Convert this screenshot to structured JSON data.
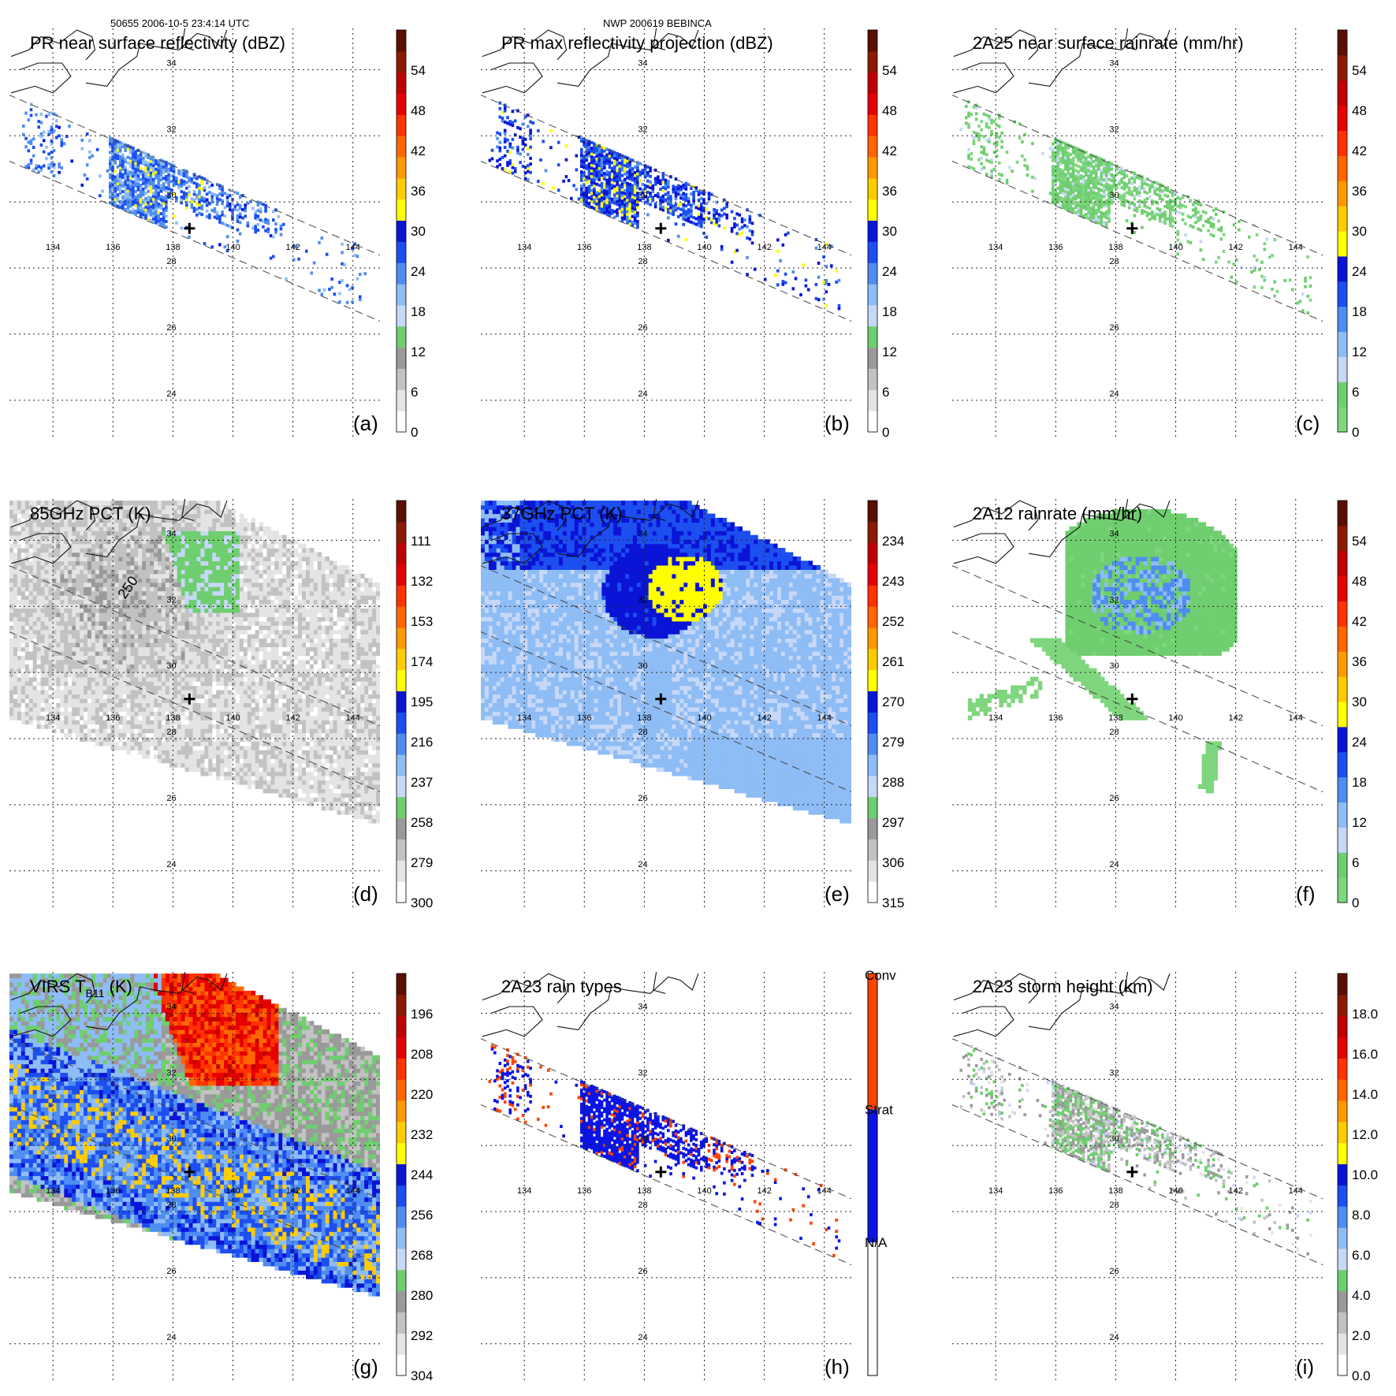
{
  "header": {
    "left": "50655 2006-10-5 23:4:14 UTC",
    "center": "NWP 200619 BEBINCA"
  },
  "chart_data": [
    {
      "type": "heatmap",
      "id": "a",
      "title": "PR near surface reflectivity (dBZ)",
      "panel_label": "(a)",
      "lon_ticks": [
        "134",
        "136",
        "138",
        "140",
        "142",
        "144"
      ],
      "lat_ticks": [
        "34",
        "32",
        "30",
        "28",
        "26",
        "24"
      ],
      "colorbar": {
        "min": 0,
        "max": 60,
        "ticks": [
          "0",
          "6",
          "12",
          "18",
          "24",
          "30",
          "36",
          "42",
          "48",
          "54"
        ],
        "palette": [
          "#ffffff",
          "#e4e4e4",
          "#c2c2c2",
          "#9a9a9a",
          "#6fce6f",
          "#c6d8f7",
          "#8ebcf5",
          "#4f8df0",
          "#1c4ef0",
          "#0a14d6",
          "#ffff00",
          "#ffcc00",
          "#ff9900",
          "#ff6600",
          "#ff3300",
          "#e60000",
          "#c00000",
          "#8c1a00",
          "#5a0f00"
        ]
      },
      "rain_overlay": "reflectivity"
    },
    {
      "type": "heatmap",
      "id": "b",
      "title": "PR max reflectivity projection (dBZ)",
      "panel_label": "(b)",
      "lon_ticks": [
        "134",
        "136",
        "138",
        "140",
        "142",
        "144"
      ],
      "lat_ticks": [
        "34",
        "32",
        "30",
        "28",
        "26",
        "24"
      ],
      "colorbar": {
        "min": 0,
        "max": 60,
        "ticks": [
          "0",
          "6",
          "12",
          "18",
          "24",
          "30",
          "36",
          "42",
          "48",
          "54"
        ],
        "palette": [
          "#ffffff",
          "#e4e4e4",
          "#c2c2c2",
          "#9a9a9a",
          "#6fce6f",
          "#c6d8f7",
          "#8ebcf5",
          "#4f8df0",
          "#1c4ef0",
          "#0a14d6",
          "#ffff00",
          "#ffcc00",
          "#ff9900",
          "#ff6600",
          "#ff3300",
          "#e60000",
          "#c00000",
          "#8c1a00",
          "#5a0f00"
        ]
      },
      "rain_overlay": "maxref"
    },
    {
      "type": "heatmap",
      "id": "c",
      "title": "2A25 near surface rainrate (mm/hr)",
      "panel_label": "(c)",
      "lon_ticks": [
        "134",
        "136",
        "138",
        "140",
        "142",
        "144"
      ],
      "lat_ticks": [
        "34",
        "32",
        "30",
        "28",
        "26",
        "24"
      ],
      "colorbar": {
        "min": 0,
        "max": 60,
        "ticks": [
          "0",
          "6",
          "12",
          "18",
          "24",
          "30",
          "36",
          "42",
          "48",
          "54"
        ],
        "palette": [
          "#7fd67f",
          "#6fce6f",
          "#c6d8f7",
          "#8ebcf5",
          "#4f8df0",
          "#1c4ef0",
          "#0a14d6",
          "#ffff00",
          "#ffcc00",
          "#ff9900",
          "#ff6600",
          "#ff3300",
          "#e60000",
          "#c00000",
          "#8c1a00",
          "#5a0f00"
        ]
      },
      "rain_overlay": "rainrate"
    },
    {
      "type": "heatmap",
      "id": "d",
      "title": "85GHz PCT (K)",
      "panel_label": "(d)",
      "contour_label": "250",
      "lon_ticks": [
        "134",
        "136",
        "138",
        "140",
        "142",
        "144"
      ],
      "lat_ticks": [
        "34",
        "32",
        "30",
        "28",
        "26",
        "24"
      ],
      "colorbar": {
        "min": 90,
        "max": 300,
        "reverse": true,
        "ticks": [
          "300",
          "279",
          "258",
          "237",
          "216",
          "195",
          "174",
          "153",
          "132",
          "111"
        ],
        "palette": [
          "#ffffff",
          "#e4e4e4",
          "#c2c2c2",
          "#9a9a9a",
          "#6fce6f",
          "#c6d8f7",
          "#8ebcf5",
          "#4f8df0",
          "#1c4ef0",
          "#0a14d6",
          "#ffff00",
          "#ffcc00",
          "#ff9900",
          "#ff6600",
          "#ff3300",
          "#e60000",
          "#c00000",
          "#8c1a00",
          "#5a0f00"
        ]
      },
      "swath": "wide-gray"
    },
    {
      "type": "heatmap",
      "id": "e",
      "title": "37GHz PCT (K)",
      "panel_label": "(e)",
      "lon_ticks": [
        "134",
        "136",
        "138",
        "140",
        "142",
        "144"
      ],
      "lat_ticks": [
        "34",
        "32",
        "30",
        "28",
        "26",
        "24"
      ],
      "colorbar": {
        "min": 225,
        "max": 315,
        "reverse": true,
        "ticks": [
          "315",
          "306",
          "297",
          "288",
          "279",
          "270",
          "261",
          "252",
          "243",
          "234"
        ],
        "palette": [
          "#ffffff",
          "#e4e4e4",
          "#c2c2c2",
          "#9a9a9a",
          "#6fce6f",
          "#c6d8f7",
          "#8ebcf5",
          "#4f8df0",
          "#1c4ef0",
          "#0a14d6",
          "#ffff00",
          "#ffcc00",
          "#ff9900",
          "#ff6600",
          "#ff3300",
          "#e60000",
          "#c00000",
          "#8c1a00",
          "#5a0f00"
        ]
      },
      "swath": "wide-blue"
    },
    {
      "type": "heatmap",
      "id": "f",
      "title": "2A12 rainrate (mm/hr)",
      "panel_label": "(f)",
      "lon_ticks": [
        "134",
        "136",
        "138",
        "140",
        "142",
        "144"
      ],
      "lat_ticks": [
        "34",
        "32",
        "30",
        "28",
        "26",
        "24"
      ],
      "colorbar": {
        "min": 0,
        "max": 60,
        "ticks": [
          "0",
          "6",
          "12",
          "18",
          "24",
          "30",
          "36",
          "42",
          "48",
          "54"
        ],
        "palette": [
          "#7fd67f",
          "#6fce6f",
          "#c6d8f7",
          "#8ebcf5",
          "#4f8df0",
          "#1c4ef0",
          "#0a14d6",
          "#ffff00",
          "#ffcc00",
          "#ff9900",
          "#ff6600",
          "#ff3300",
          "#e60000",
          "#c00000",
          "#8c1a00",
          "#5a0f00"
        ]
      },
      "swath": "wide-rain"
    },
    {
      "type": "heatmap",
      "id": "g",
      "title": "VIRS T",
      "title_sub": "B11",
      "title_tail": " (K)",
      "panel_label": "(g)",
      "lon_ticks": [
        "134",
        "136",
        "138",
        "140",
        "142",
        "144"
      ],
      "lat_ticks": [
        "34",
        "32",
        "30",
        "28",
        "26",
        "24"
      ],
      "colorbar": {
        "min": 184,
        "max": 304,
        "reverse": true,
        "ticks": [
          "304",
          "292",
          "280",
          "268",
          "256",
          "244",
          "232",
          "220",
          "208",
          "196"
        ],
        "palette": [
          "#ffffff",
          "#e4e4e4",
          "#c2c2c2",
          "#9a9a9a",
          "#6fce6f",
          "#c6d8f7",
          "#8ebcf5",
          "#4f8df0",
          "#1c4ef0",
          "#0a14d6",
          "#ffff00",
          "#ffcc00",
          "#ff9900",
          "#ff6600",
          "#ff3300",
          "#e60000",
          "#c00000",
          "#8c1a00",
          "#5a0f00"
        ]
      },
      "swath": "wide-ir"
    },
    {
      "type": "heatmap",
      "id": "h",
      "title": "2A23 rain types",
      "panel_label": "(h)",
      "lon_ticks": [
        "134",
        "136",
        "138",
        "140",
        "142",
        "144"
      ],
      "lat_ticks": [
        "34",
        "32",
        "30",
        "28",
        "26",
        "24"
      ],
      "colorbar": {
        "categorical": true,
        "ticks": [
          "N/A",
          "Strat",
          "Conv"
        ],
        "palette": [
          "#ffffff",
          "#0a14e6",
          "#ff4400"
        ]
      },
      "rain_overlay": "raintype"
    },
    {
      "type": "heatmap",
      "id": "i",
      "title": "2A23 storm height (km)",
      "panel_label": "(i)",
      "lon_ticks": [
        "134",
        "136",
        "138",
        "140",
        "142",
        "144"
      ],
      "lat_ticks": [
        "34",
        "32",
        "30",
        "28",
        "26",
        "24"
      ],
      "colorbar": {
        "min": 0,
        "max": 20,
        "ticks": [
          "0.0",
          "2.0",
          "4.0",
          "6.0",
          "8.0",
          "10.0",
          "12.0",
          "14.0",
          "16.0",
          "18.0"
        ],
        "palette": [
          "#ffffff",
          "#e4e4e4",
          "#c2c2c2",
          "#9a9a9a",
          "#6fce6f",
          "#c6d8f7",
          "#8ebcf5",
          "#4f8df0",
          "#1c4ef0",
          "#0a14d6",
          "#ffff00",
          "#ffcc00",
          "#ff9900",
          "#ff6600",
          "#ff3300",
          "#e60000",
          "#c00000",
          "#8c1a00",
          "#5a0f00"
        ]
      },
      "rain_overlay": "height"
    }
  ]
}
